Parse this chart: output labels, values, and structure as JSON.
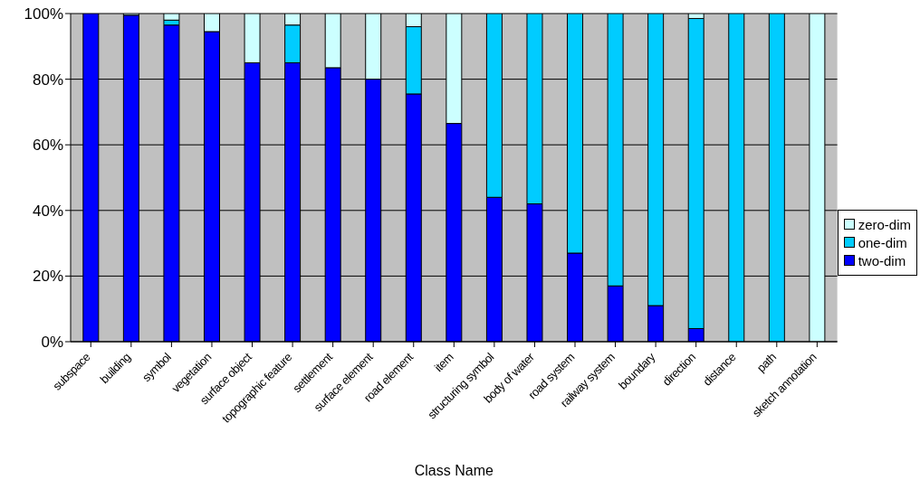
{
  "chart_data": {
    "type": "bar",
    "stacked": true,
    "xlabel": "Class Name",
    "categories": [
      "subspace",
      "building",
      "symbol",
      "vegetation",
      "surface object",
      "topographic feature",
      "settlement",
      "surface element",
      "road element",
      "item",
      "structuring symbol",
      "body of water",
      "road system",
      "railway system",
      "boundary",
      "direction",
      "distance",
      "path",
      "sketch annotation"
    ],
    "series": [
      {
        "name": "two-dim",
        "color": "#0000ff",
        "values": [
          100,
          99.5,
          96.5,
          94.5,
          85,
          85,
          83.5,
          80,
          75.5,
          66.5,
          44,
          42,
          27,
          17,
          11,
          4,
          0,
          0,
          0
        ]
      },
      {
        "name": "one-dim",
        "color": "#00ccff",
        "values": [
          0,
          0,
          1.5,
          0,
          0,
          11.5,
          0,
          0,
          20.5,
          0,
          56,
          58,
          73,
          83,
          89,
          94.5,
          100,
          100,
          0
        ]
      },
      {
        "name": "zero-dim",
        "color": "#ccffff",
        "values": [
          0,
          0.5,
          2,
          5.5,
          15,
          3.5,
          16.5,
          20,
          4,
          33.5,
          0,
          0,
          0,
          0,
          0,
          1.5,
          0,
          0,
          100
        ]
      }
    ],
    "ylim": [
      0,
      100
    ],
    "yticks": [
      {
        "value": 0,
        "label": "0%"
      },
      {
        "value": 20,
        "label": "20%"
      },
      {
        "value": 40,
        "label": "40%"
      },
      {
        "value": 60,
        "label": "60%"
      },
      {
        "value": 80,
        "label": "80%"
      },
      {
        "value": 100,
        "label": "100%"
      }
    ],
    "grid": "y",
    "legend": "right"
  }
}
